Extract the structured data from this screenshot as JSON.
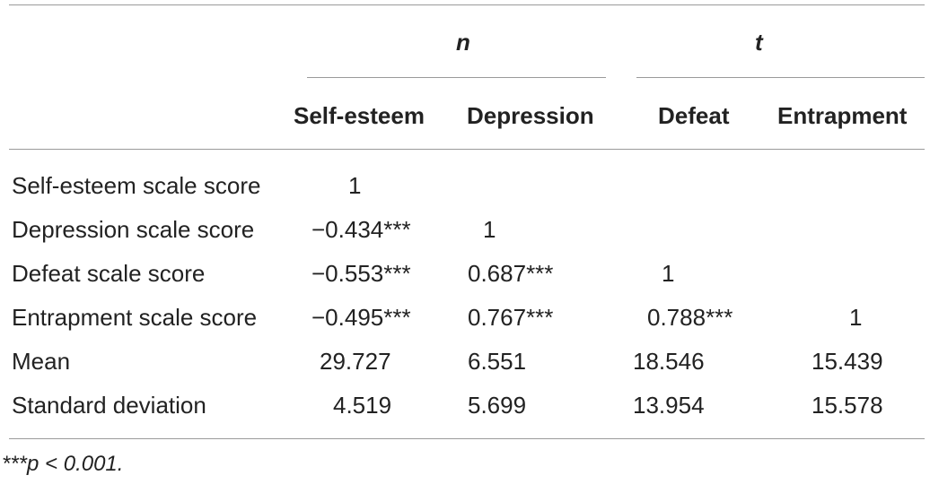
{
  "table": {
    "group_headers": [
      "n",
      "t"
    ],
    "columns": [
      "Self-esteem",
      "Depression",
      "Defeat",
      "Entrapment"
    ],
    "rows": [
      {
        "label": "Self-esteem scale score",
        "cells": [
          "1",
          "",
          "",
          ""
        ]
      },
      {
        "label": "Depression scale score",
        "cells": [
          "−0.434***",
          "1",
          "",
          ""
        ]
      },
      {
        "label": "Defeat scale score",
        "cells": [
          "−0.553***",
          "0.687***",
          "1",
          ""
        ]
      },
      {
        "label": "Entrapment scale score",
        "cells": [
          "−0.495***",
          "0.767***",
          "0.788***",
          "1"
        ]
      },
      {
        "label": "Mean",
        "cells": [
          "29.727",
          "6.551",
          "18.546",
          "15.439"
        ]
      },
      {
        "label": "Standard deviation",
        "cells": [
          "4.519",
          "5.699",
          "13.954",
          "15.578"
        ]
      }
    ],
    "footnote": "***p < 0.001."
  }
}
